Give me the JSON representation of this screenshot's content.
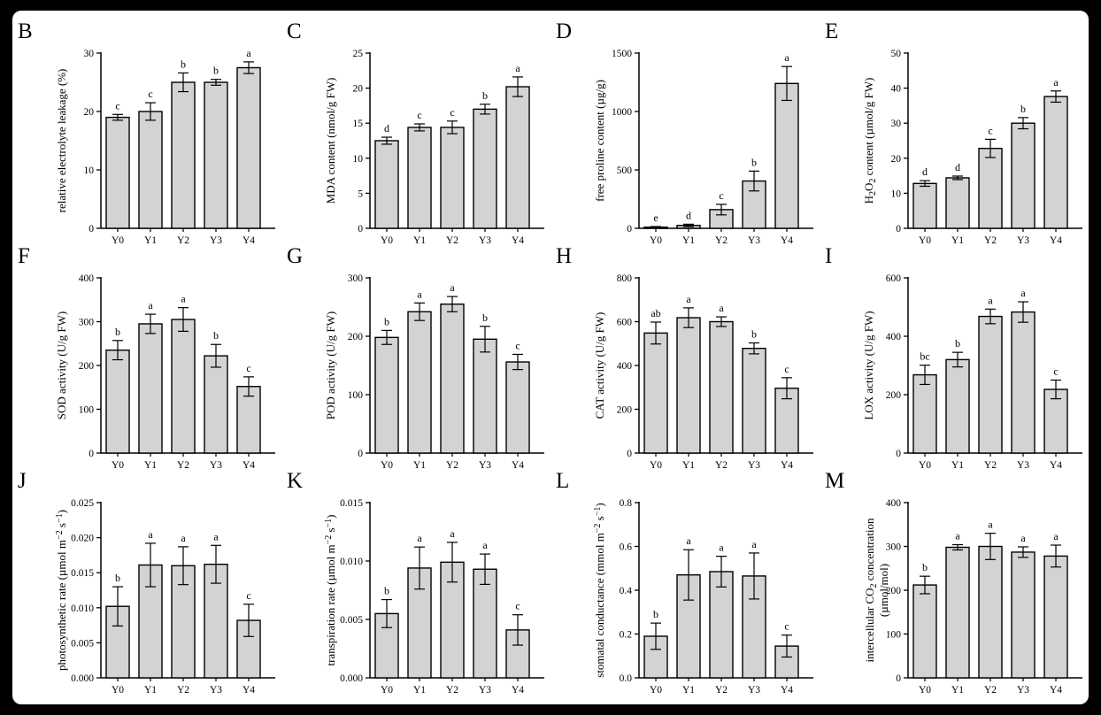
{
  "figure": {
    "bar_color": "#d3d3d3",
    "edge_color": "#000000"
  },
  "chart_data": [
    {
      "panel": "B",
      "type": "bar",
      "categories": [
        "Y0",
        "Y1",
        "Y2",
        "Y3",
        "Y4"
      ],
      "values": [
        19,
        20,
        25,
        25,
        27.5
      ],
      "errors": [
        0.5,
        1.5,
        1.6,
        0.5,
        1.0
      ],
      "letters": [
        "c",
        "c",
        "b",
        "b",
        "a"
      ],
      "ylabel": "relative electrolyte leakage (%)",
      "ylim": [
        0,
        30
      ],
      "ticks": [
        "0",
        "10",
        "20",
        "30"
      ]
    },
    {
      "panel": "C",
      "type": "bar",
      "categories": [
        "Y0",
        "Y1",
        "Y2",
        "Y3",
        "Y4"
      ],
      "values": [
        12.5,
        14.4,
        14.4,
        17,
        20.2
      ],
      "errors": [
        0.5,
        0.5,
        0.9,
        0.7,
        1.4
      ],
      "letters": [
        "d",
        "c",
        "c",
        "b",
        "a"
      ],
      "ylabel": "MDA content (nmol/g FW)",
      "ylim": [
        0,
        25
      ],
      "ticks": [
        "0",
        "5",
        "10",
        "15",
        "20",
        "25"
      ]
    },
    {
      "panel": "D",
      "type": "bar",
      "categories": [
        "Y0",
        "Y1",
        "Y2",
        "Y3",
        "Y4"
      ],
      "values": [
        10,
        25,
        160,
        405,
        1240
      ],
      "errors": [
        5,
        10,
        45,
        85,
        145
      ],
      "letters": [
        "e",
        "d",
        "c",
        "b",
        "a"
      ],
      "ylabel": "free proline content (µg/g)",
      "ylim": [
        0,
        1500
      ],
      "ticks": [
        "0",
        "500",
        "1000",
        "1500"
      ]
    },
    {
      "panel": "E",
      "type": "bar",
      "categories": [
        "Y0",
        "Y1",
        "Y2",
        "Y3",
        "Y4"
      ],
      "values": [
        12.8,
        14.4,
        22.8,
        30,
        37.6
      ],
      "errors": [
        0.8,
        0.5,
        2.6,
        1.6,
        1.6
      ],
      "letters": [
        "d",
        "d",
        "c",
        "b",
        "a"
      ],
      "ylabel_parts": [
        "H",
        "2",
        "O",
        "2",
        " content (µmol/g FW)"
      ],
      "ylabel": "H2O2 content (µmol/g FW)",
      "ylim": [
        0,
        50
      ],
      "ticks": [
        "0",
        "10",
        "20",
        "30",
        "40",
        "50"
      ]
    },
    {
      "panel": "F",
      "type": "bar",
      "categories": [
        "Y0",
        "Y1",
        "Y2",
        "Y3",
        "Y4"
      ],
      "values": [
        235,
        295,
        305,
        222,
        152
      ],
      "errors": [
        22,
        22,
        27,
        26,
        22
      ],
      "letters": [
        "b",
        "a",
        "a",
        "b",
        "c"
      ],
      "ylabel": "SOD activity (U/g FW)",
      "ylim": [
        0,
        400
      ],
      "ticks": [
        "0",
        "100",
        "200",
        "300",
        "400"
      ]
    },
    {
      "panel": "G",
      "type": "bar",
      "categories": [
        "Y0",
        "Y1",
        "Y2",
        "Y3",
        "Y4"
      ],
      "values": [
        198,
        242,
        255,
        195,
        156
      ],
      "errors": [
        12,
        15,
        13,
        22,
        13
      ],
      "letters": [
        "b",
        "a",
        "a",
        "b",
        "c"
      ],
      "ylabel": "POD activity (U/g FW)",
      "ylim": [
        0,
        300
      ],
      "ticks": [
        "0",
        "100",
        "200",
        "300"
      ]
    },
    {
      "panel": "H",
      "type": "bar",
      "categories": [
        "Y0",
        "Y1",
        "Y2",
        "Y3",
        "Y4"
      ],
      "values": [
        548,
        618,
        600,
        478,
        296
      ],
      "errors": [
        50,
        45,
        22,
        25,
        48
      ],
      "letters": [
        "ab",
        "a",
        "a",
        "b",
        "c"
      ],
      "ylabel": "CAT activity (U/g FW)",
      "ylim": [
        0,
        800
      ],
      "ticks": [
        "0",
        "200",
        "400",
        "600",
        "800"
      ]
    },
    {
      "panel": "I",
      "type": "bar",
      "categories": [
        "Y0",
        "Y1",
        "Y2",
        "Y3",
        "Y4"
      ],
      "values": [
        268,
        320,
        468,
        483,
        218
      ],
      "errors": [
        33,
        25,
        25,
        35,
        32
      ],
      "letters": [
        "bc",
        "b",
        "a",
        "a",
        "c"
      ],
      "ylabel": "LOX activity (U/g FW)",
      "ylim": [
        0,
        600
      ],
      "ticks": [
        "0",
        "200",
        "400",
        "600"
      ]
    },
    {
      "panel": "J",
      "type": "bar",
      "categories": [
        "Y0",
        "Y1",
        "Y2",
        "Y3",
        "Y4"
      ],
      "values": [
        0.0102,
        0.0161,
        0.016,
        0.0162,
        0.0082
      ],
      "errors": [
        0.0028,
        0.0031,
        0.0027,
        0.0027,
        0.0023
      ],
      "letters": [
        "b",
        "a",
        "a",
        "a",
        "c"
      ],
      "ylabel_parts": [
        "photosynthetic rate (µmol m",
        "−2",
        " s",
        "−1",
        ")"
      ],
      "ylabel": "photosynthetic rate (µmol m-2 s-1)",
      "ylim": [
        0,
        0.025
      ],
      "ticks": [
        "0.000",
        "0.005",
        "0.010",
        "0.015",
        "0.020",
        "0.025"
      ]
    },
    {
      "panel": "K",
      "type": "bar",
      "categories": [
        "Y0",
        "Y1",
        "Y2",
        "Y3",
        "Y4"
      ],
      "values": [
        0.0055,
        0.0094,
        0.0099,
        0.0093,
        0.0041
      ],
      "errors": [
        0.0012,
        0.0018,
        0.0017,
        0.0013,
        0.0013
      ],
      "letters": [
        "b",
        "a",
        "a",
        "a",
        "c"
      ],
      "ylabel_parts": [
        "transpiration rate (µmol m",
        "−2",
        " s",
        "−1",
        ")"
      ],
      "ylabel": "transpiration rate (µmol m-2 s-1)",
      "ylim": [
        0,
        0.015
      ],
      "ticks": [
        "0.000",
        "0.005",
        "0.010",
        "0.015"
      ]
    },
    {
      "panel": "L",
      "type": "bar",
      "categories": [
        "Y0",
        "Y1",
        "Y2",
        "Y3",
        "Y4"
      ],
      "values": [
        0.19,
        0.47,
        0.485,
        0.465,
        0.145
      ],
      "errors": [
        0.06,
        0.115,
        0.07,
        0.105,
        0.05
      ],
      "letters": [
        "b",
        "a",
        "a",
        "a",
        "c"
      ],
      "ylabel_parts": [
        "stomatal conductance (mmol m",
        "−2",
        " s",
        "−1",
        ")"
      ],
      "ylabel": "stomatal conductance (mmol m-2 s-1)",
      "ylim": [
        0,
        0.8
      ],
      "ticks": [
        "0.0",
        "0.2",
        "0.4",
        "0.6",
        "0.8"
      ]
    },
    {
      "panel": "M",
      "type": "bar",
      "categories": [
        "Y0",
        "Y1",
        "Y2",
        "Y3",
        "Y4"
      ],
      "values": [
        212,
        298,
        300,
        287,
        278
      ],
      "errors": [
        20,
        6,
        30,
        12,
        25
      ],
      "letters": [
        "b",
        "a",
        "a",
        "a",
        "a"
      ],
      "ylabel_parts": [
        "intercellular CO",
        "2",
        " concentration"
      ],
      "ylabel2": "(µmol/mol)",
      "ylabel": "intercellular CO2 concentration (µmol/mol)",
      "ylim": [
        0,
        400
      ],
      "ticks": [
        "0",
        "100",
        "200",
        "300",
        "400"
      ]
    }
  ]
}
